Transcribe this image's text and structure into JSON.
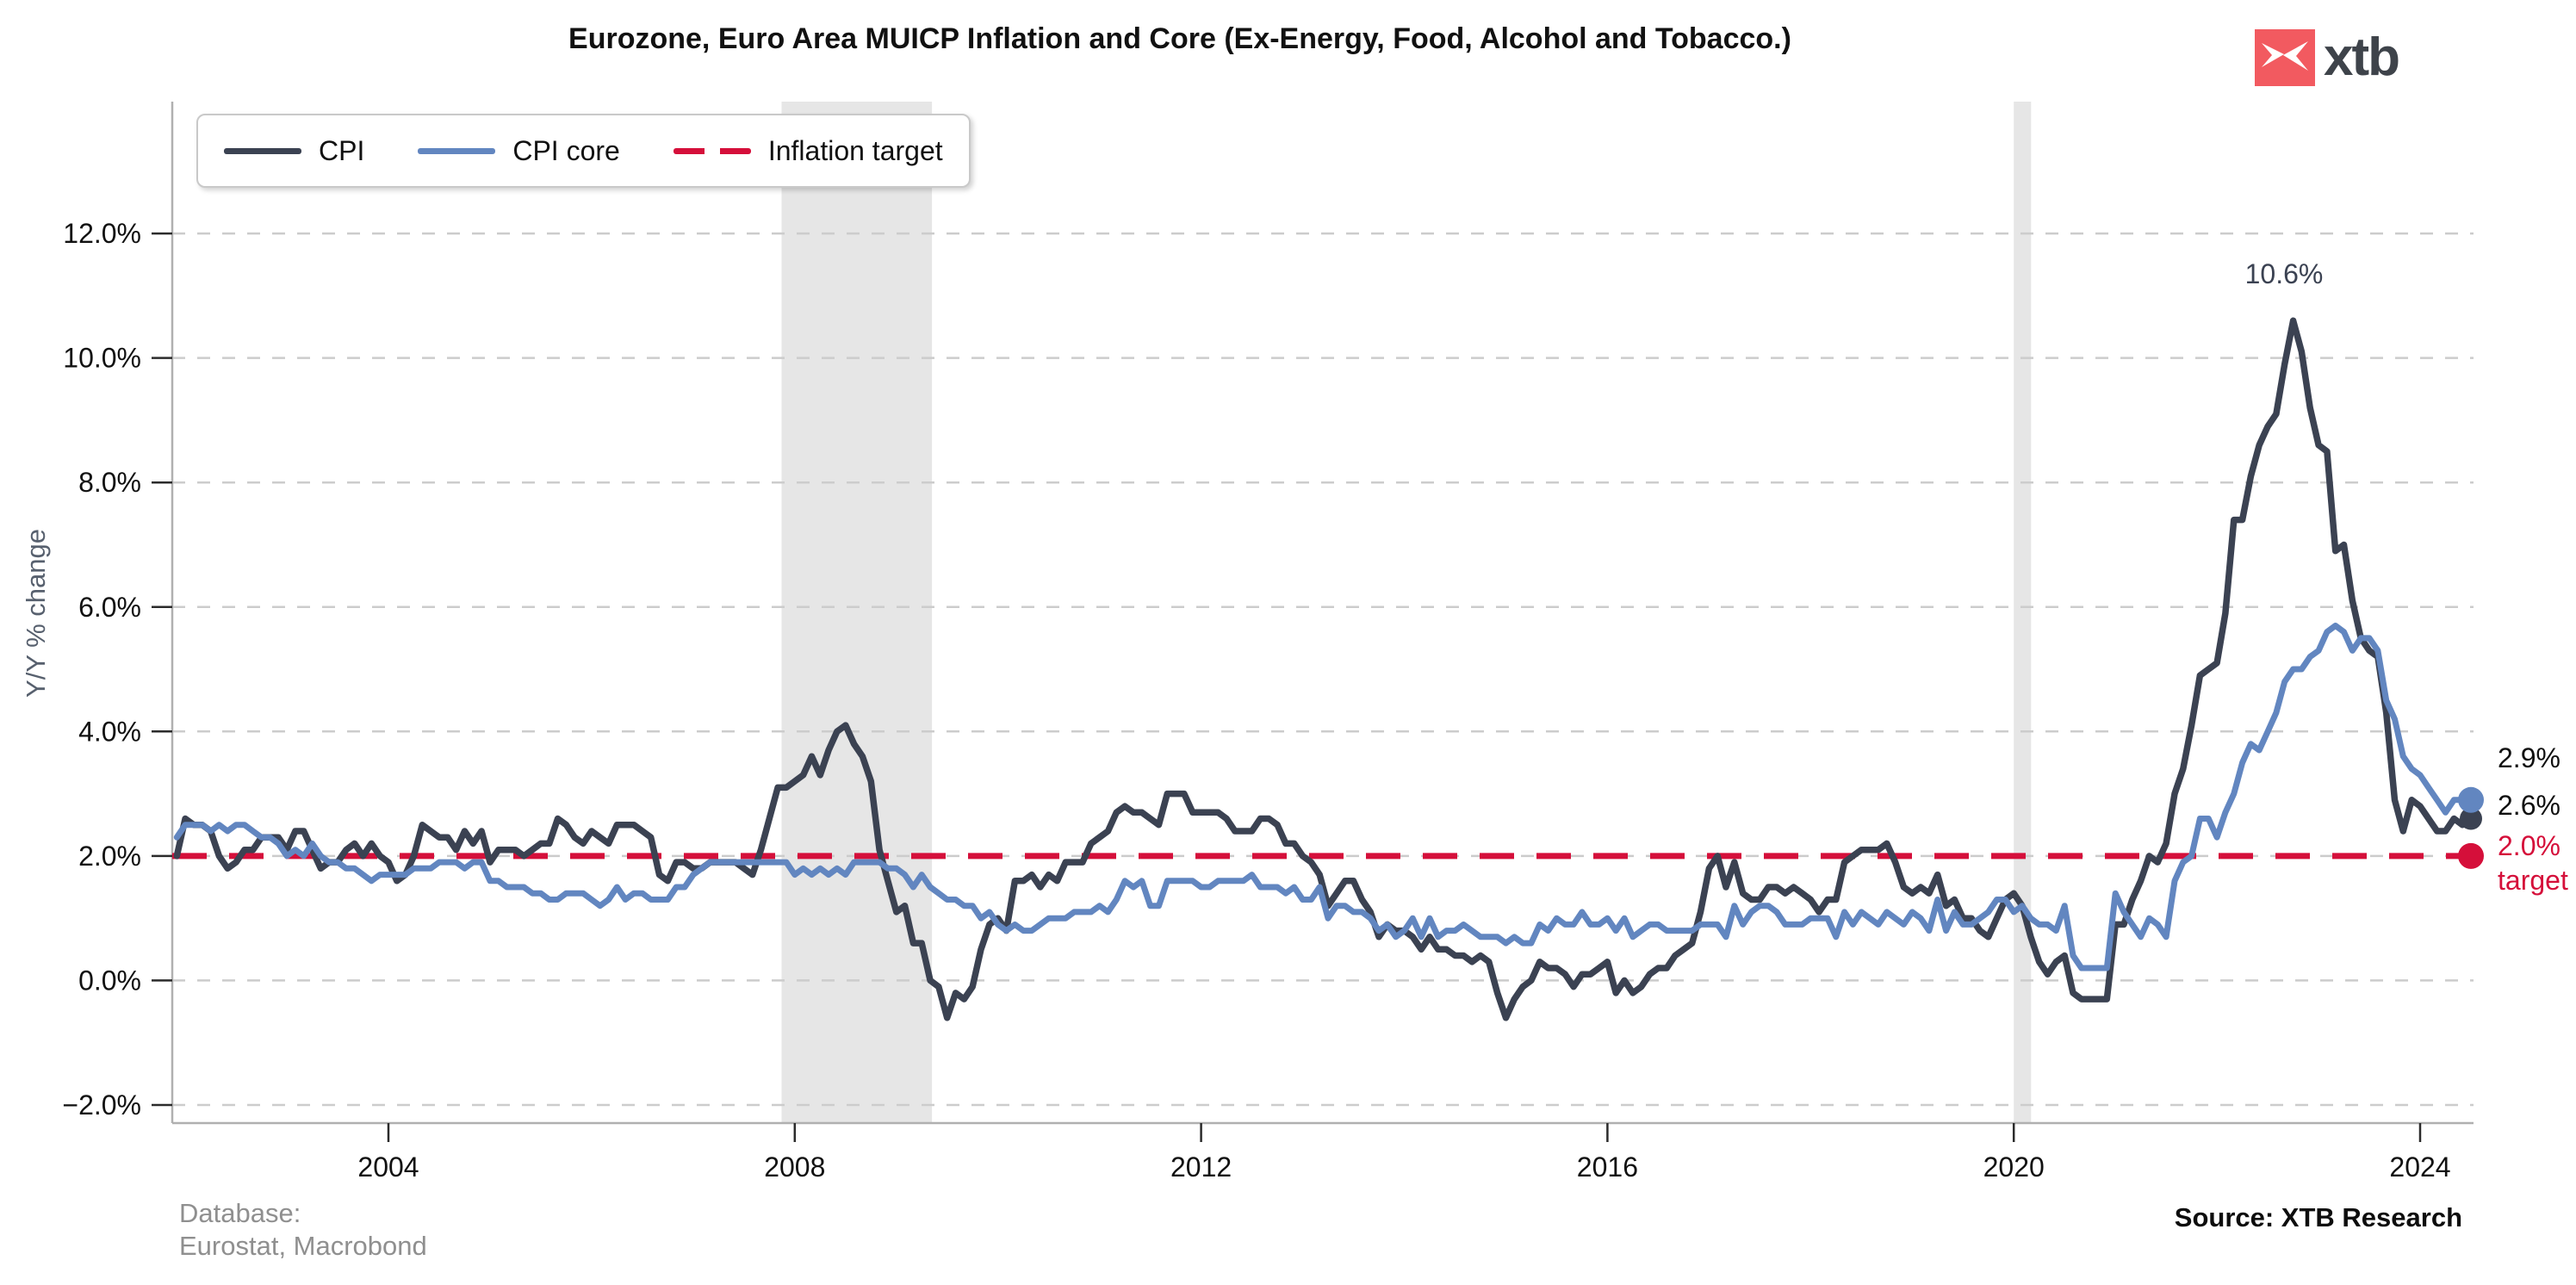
{
  "header": {
    "title": "Eurozone, Euro Area MUICP Inflation and Core (Ex-Energy, Food, Alcohol and Tobacco.)",
    "logo_text": "xtb"
  },
  "legend": {
    "items": [
      {
        "label": "CPI"
      },
      {
        "label": "CPI core"
      },
      {
        "label": "Inflation target"
      }
    ]
  },
  "axes": {
    "y_title": "Y/Y % change"
  },
  "annotations": {
    "peak": "10.6%",
    "core_end": "2.9%",
    "cpi_end": "2.6%",
    "target_value": "2.0%",
    "target_word": "target"
  },
  "footer": {
    "database_label": "Database:",
    "database_sources": "Eurostat, Macrobond",
    "source": "Source: XTB Research"
  },
  "colors": {
    "cpi": "#3b4252",
    "core": "#6286c0",
    "target": "#d50f3a",
    "band": "#e6e6e6",
    "grid": "#cccccc",
    "axis": "#b0b0b0",
    "tick_mark": "#2b2b2b",
    "tick_label": "#111111",
    "logo_red": "#f25a60",
    "logo_text": "#3e434a",
    "y_title": "#57606e",
    "footer_gray": "#8f8f8f"
  },
  "chart_data": {
    "type": "line",
    "title": "Eurozone, Euro Area MUICP Inflation and Core (Ex-Energy, Food, Alcohol and Tobacco.)",
    "ylabel": "Y/Y % change",
    "ylim": [
      -2.3,
      14.1
    ],
    "grid": true,
    "legend_position": "top-left",
    "frequency": "monthly",
    "x_start": {
      "year": 2001,
      "month": 12
    },
    "x_end": {
      "year": 2024,
      "month": 7
    },
    "x_ticks": [
      2004,
      2008,
      2012,
      2016,
      2020,
      2024
    ],
    "y_ticks": {
      "values": [
        -2,
        0,
        2,
        4,
        6,
        8,
        10,
        12
      ],
      "labels": [
        "−2.0%",
        "0.0%",
        "2.0%",
        "4.0%",
        "6.0%",
        "8.0%",
        "10.0%",
        "12.0%"
      ]
    },
    "recession_bands": [
      [
        2007.87,
        2009.35
      ],
      [
        2020.0,
        2020.17
      ]
    ],
    "target": {
      "label": "Inflation target",
      "value": 2.0,
      "end_label": "2.0% target"
    },
    "peak_label": {
      "series": "CPI",
      "date": "2022-10",
      "value": 10.6,
      "text": "10.6%"
    },
    "end_labels": {
      "CPI": "2.6%",
      "CPI core": "2.9%"
    },
    "series": [
      {
        "name": "CPI",
        "values": [
          2.0,
          2.6,
          2.5,
          2.5,
          2.4,
          2.0,
          1.8,
          1.9,
          2.1,
          2.1,
          2.3,
          2.3,
          2.3,
          2.1,
          2.4,
          2.4,
          2.1,
          1.8,
          1.9,
          1.9,
          2.1,
          2.2,
          2.0,
          2.2,
          2.0,
          1.9,
          1.6,
          1.7,
          2.0,
          2.5,
          2.4,
          2.3,
          2.3,
          2.1,
          2.4,
          2.2,
          2.4,
          1.9,
          2.1,
          2.1,
          2.1,
          2.0,
          2.1,
          2.2,
          2.2,
          2.6,
          2.5,
          2.3,
          2.2,
          2.4,
          2.3,
          2.2,
          2.5,
          2.5,
          2.5,
          2.4,
          2.3,
          1.7,
          1.6,
          1.9,
          1.9,
          1.8,
          1.8,
          1.9,
          1.9,
          1.9,
          1.9,
          1.8,
          1.7,
          2.1,
          2.6,
          3.1,
          3.1,
          3.2,
          3.3,
          3.6,
          3.3,
          3.7,
          4.0,
          4.1,
          3.8,
          3.6,
          3.2,
          2.1,
          1.6,
          1.1,
          1.2,
          0.6,
          0.6,
          0.0,
          -0.1,
          -0.6,
          -0.2,
          -0.3,
          -0.1,
          0.5,
          0.9,
          1.0,
          0.8,
          1.6,
          1.6,
          1.7,
          1.5,
          1.7,
          1.6,
          1.9,
          1.9,
          1.9,
          2.2,
          2.3,
          2.4,
          2.7,
          2.8,
          2.7,
          2.7,
          2.6,
          2.5,
          3.0,
          3.0,
          3.0,
          2.7,
          2.7,
          2.7,
          2.7,
          2.6,
          2.4,
          2.4,
          2.4,
          2.6,
          2.6,
          2.5,
          2.2,
          2.2,
          2.0,
          1.9,
          1.7,
          1.2,
          1.4,
          1.6,
          1.6,
          1.3,
          1.1,
          0.7,
          0.9,
          0.8,
          0.8,
          0.7,
          0.5,
          0.7,
          0.5,
          0.5,
          0.4,
          0.4,
          0.3,
          0.4,
          0.3,
          -0.2,
          -0.6,
          -0.3,
          -0.1,
          0.0,
          0.3,
          0.2,
          0.2,
          0.1,
          -0.1,
          0.1,
          0.1,
          0.2,
          0.3,
          -0.2,
          0.0,
          -0.2,
          -0.1,
          0.1,
          0.2,
          0.2,
          0.4,
          0.5,
          0.6,
          1.1,
          1.8,
          2.0,
          1.5,
          1.9,
          1.4,
          1.3,
          1.3,
          1.5,
          1.5,
          1.4,
          1.5,
          1.4,
          1.3,
          1.1,
          1.3,
          1.3,
          1.9,
          2.0,
          2.1,
          2.1,
          2.1,
          2.2,
          1.9,
          1.5,
          1.4,
          1.5,
          1.4,
          1.7,
          1.2,
          1.3,
          1.0,
          1.0,
          0.8,
          0.7,
          1.0,
          1.3,
          1.4,
          1.2,
          0.7,
          0.3,
          0.1,
          0.3,
          0.4,
          -0.2,
          -0.3,
          -0.3,
          -0.3,
          -0.3,
          0.9,
          0.9,
          1.3,
          1.6,
          2.0,
          1.9,
          2.2,
          3.0,
          3.4,
          4.1,
          4.9,
          5.0,
          5.1,
          5.9,
          7.4,
          7.4,
          8.1,
          8.6,
          8.9,
          9.1,
          9.9,
          10.6,
          10.1,
          9.2,
          8.6,
          8.5,
          6.9,
          7.0,
          6.1,
          5.5,
          5.3,
          5.2,
          4.3,
          2.9,
          2.4,
          2.9,
          2.8,
          2.6,
          2.4,
          2.4,
          2.6,
          2.5,
          2.6
        ]
      },
      {
        "name": "CPI core",
        "values": [
          2.3,
          2.5,
          2.5,
          2.5,
          2.4,
          2.5,
          2.4,
          2.5,
          2.5,
          2.4,
          2.3,
          2.3,
          2.2,
          2.0,
          2.1,
          2.0,
          2.2,
          2.0,
          1.9,
          1.9,
          1.8,
          1.8,
          1.7,
          1.6,
          1.7,
          1.7,
          1.7,
          1.7,
          1.8,
          1.8,
          1.8,
          1.9,
          1.9,
          1.9,
          1.8,
          1.9,
          1.9,
          1.6,
          1.6,
          1.5,
          1.5,
          1.5,
          1.4,
          1.4,
          1.3,
          1.3,
          1.4,
          1.4,
          1.4,
          1.3,
          1.2,
          1.3,
          1.5,
          1.3,
          1.4,
          1.4,
          1.3,
          1.3,
          1.3,
          1.5,
          1.5,
          1.7,
          1.8,
          1.9,
          1.9,
          1.9,
          1.9,
          1.9,
          1.9,
          1.9,
          1.9,
          1.9,
          1.9,
          1.7,
          1.8,
          1.7,
          1.8,
          1.7,
          1.8,
          1.7,
          1.9,
          1.9,
          1.9,
          1.9,
          1.8,
          1.8,
          1.7,
          1.5,
          1.7,
          1.5,
          1.4,
          1.3,
          1.3,
          1.2,
          1.2,
          1.0,
          1.1,
          0.9,
          0.8,
          0.9,
          0.8,
          0.8,
          0.9,
          1.0,
          1.0,
          1.0,
          1.1,
          1.1,
          1.1,
          1.2,
          1.1,
          1.3,
          1.6,
          1.5,
          1.6,
          1.2,
          1.2,
          1.6,
          1.6,
          1.6,
          1.6,
          1.5,
          1.5,
          1.6,
          1.6,
          1.6,
          1.6,
          1.7,
          1.5,
          1.5,
          1.5,
          1.4,
          1.5,
          1.3,
          1.3,
          1.5,
          1.0,
          1.2,
          1.2,
          1.1,
          1.1,
          1.0,
          0.8,
          0.9,
          0.7,
          0.8,
          1.0,
          0.7,
          1.0,
          0.7,
          0.8,
          0.8,
          0.9,
          0.8,
          0.7,
          0.7,
          0.7,
          0.6,
          0.7,
          0.6,
          0.6,
          0.9,
          0.8,
          1.0,
          0.9,
          0.9,
          1.1,
          0.9,
          0.9,
          1.0,
          0.8,
          1.0,
          0.7,
          0.8,
          0.9,
          0.9,
          0.8,
          0.8,
          0.8,
          0.8,
          0.9,
          0.9,
          0.9,
          0.7,
          1.2,
          0.9,
          1.1,
          1.2,
          1.2,
          1.1,
          0.9,
          0.9,
          0.9,
          1.0,
          1.0,
          1.0,
          0.7,
          1.1,
          0.9,
          1.1,
          1.0,
          0.9,
          1.1,
          1.0,
          0.9,
          1.1,
          1.0,
          0.8,
          1.3,
          0.8,
          1.1,
          0.9,
          0.9,
          1.0,
          1.1,
          1.3,
          1.3,
          1.1,
          1.2,
          1.0,
          0.9,
          0.9,
          0.8,
          1.2,
          0.4,
          0.2,
          0.2,
          0.2,
          0.2,
          1.4,
          1.1,
          0.9,
          0.7,
          1.0,
          0.9,
          0.7,
          1.6,
          1.9,
          2.0,
          2.6,
          2.6,
          2.3,
          2.7,
          3.0,
          3.5,
          3.8,
          3.7,
          4.0,
          4.3,
          4.8,
          5.0,
          5.0,
          5.2,
          5.3,
          5.6,
          5.7,
          5.6,
          5.3,
          5.5,
          5.5,
          5.3,
          4.5,
          4.2,
          3.6,
          3.4,
          3.3,
          3.1,
          2.9,
          2.7,
          2.9,
          2.9,
          2.9
        ]
      }
    ]
  }
}
